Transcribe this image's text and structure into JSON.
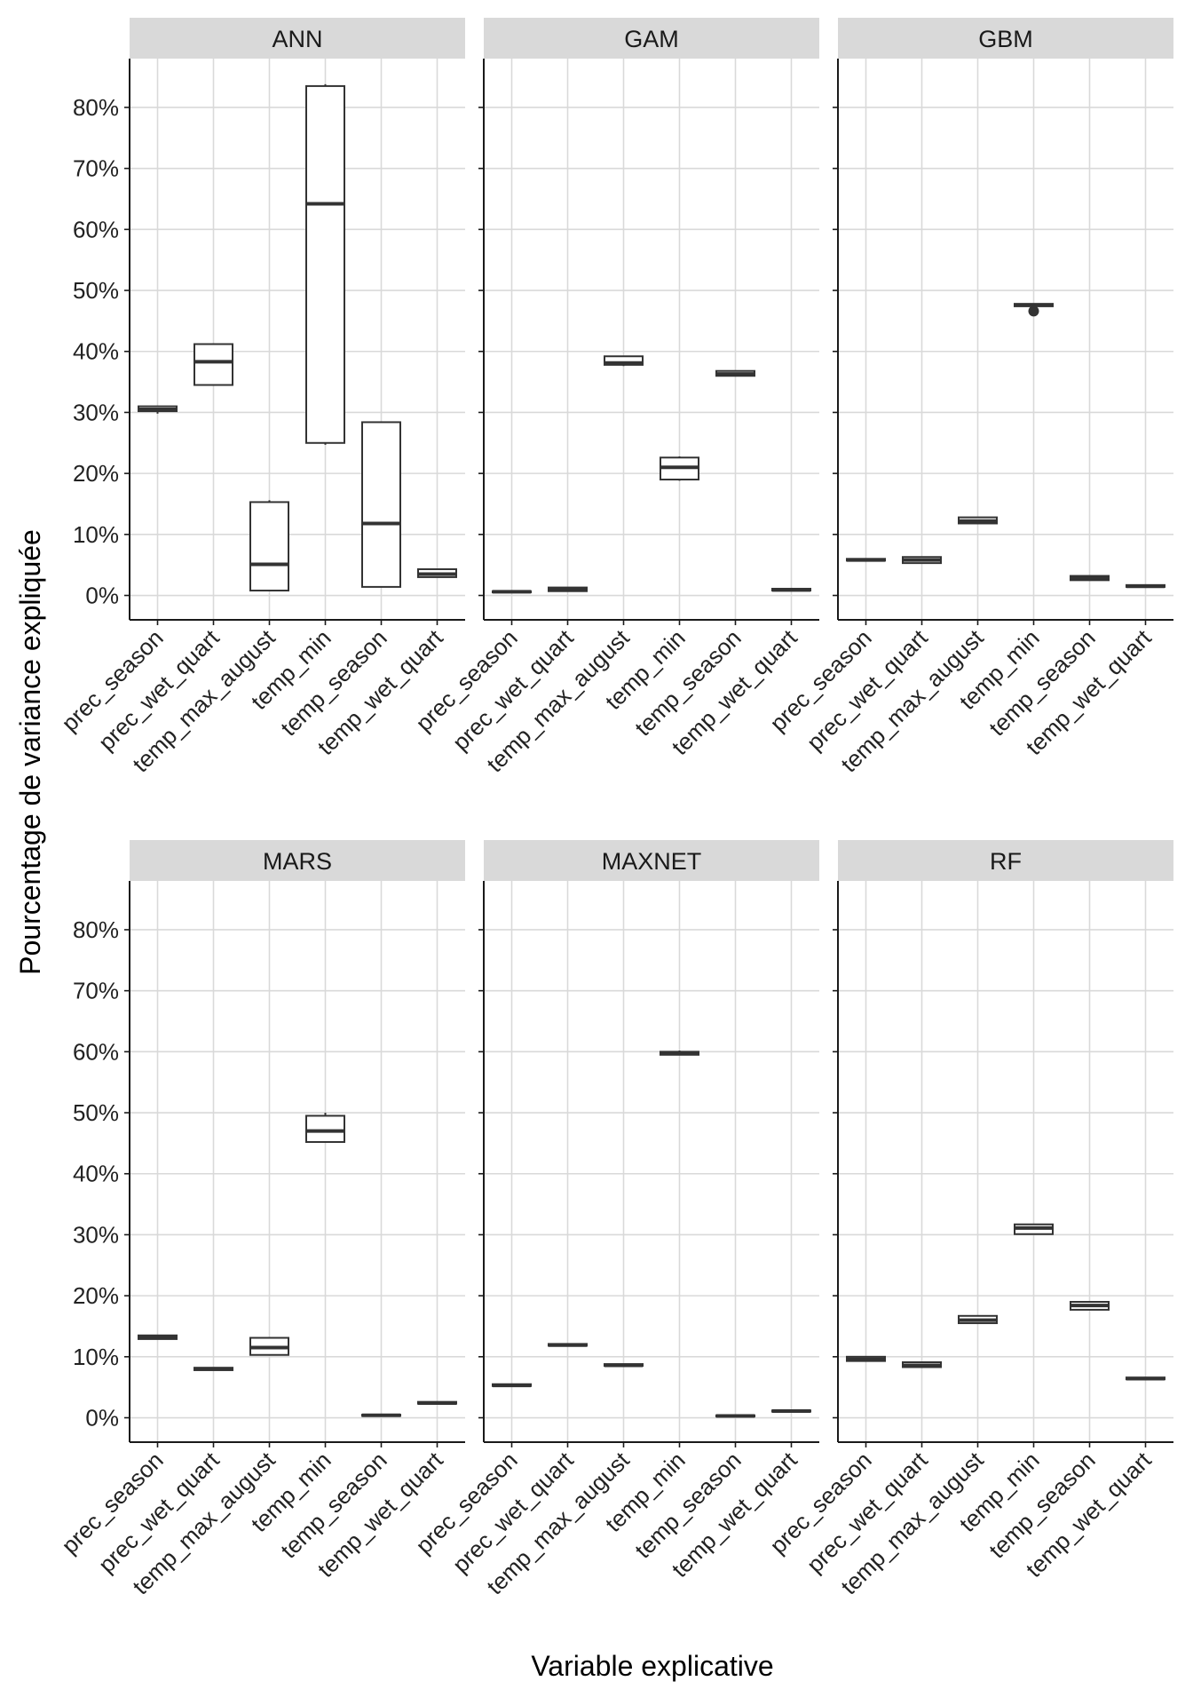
{
  "chart_data": {
    "type": "boxplot",
    "layout": "facet-grid 2x3",
    "xlabel": "Variable explicative",
    "ylabel": "Pourcentage de variance expliquée",
    "ylim": [
      -0.04,
      0.88
    ],
    "yticks": [
      0,
      0.1,
      0.2,
      0.3,
      0.4,
      0.5,
      0.6,
      0.7,
      0.8
    ],
    "ytick_labels": [
      "0%",
      "10%",
      "20%",
      "30%",
      "40%",
      "50%",
      "60%",
      "70%",
      "80%"
    ],
    "categories": [
      "prec_season",
      "prec_wet_quart",
      "temp_max_august",
      "temp_min",
      "temp_season",
      "temp_wet_quart"
    ],
    "grid": true,
    "facets": [
      {
        "name": "ANN",
        "boxes": [
          {
            "min": 0.298,
            "q1": 0.302,
            "median": 0.305,
            "q3": 0.31,
            "max": 0.311
          },
          {
            "min": 0.345,
            "q1": 0.345,
            "median": 0.383,
            "q3": 0.412,
            "max": 0.412
          },
          {
            "min": 0.008,
            "q1": 0.008,
            "median": 0.051,
            "q3": 0.153,
            "max": 0.156
          },
          {
            "min": 0.247,
            "q1": 0.25,
            "median": 0.642,
            "q3": 0.835,
            "max": 0.838
          },
          {
            "min": 0.014,
            "q1": 0.014,
            "median": 0.118,
            "q3": 0.284,
            "max": 0.284
          },
          {
            "min": 0.03,
            "q1": 0.03,
            "median": 0.035,
            "q3": 0.043,
            "max": 0.043
          }
        ]
      },
      {
        "name": "GAM",
        "boxes": [
          {
            "min": 0.005,
            "q1": 0.005,
            "median": 0.006,
            "q3": 0.007,
            "max": 0.007
          },
          {
            "min": 0.007,
            "q1": 0.007,
            "median": 0.01,
            "q3": 0.013,
            "max": 0.013
          },
          {
            "min": 0.376,
            "q1": 0.378,
            "median": 0.381,
            "q3": 0.392,
            "max": 0.392
          },
          {
            "min": 0.188,
            "q1": 0.19,
            "median": 0.21,
            "q3": 0.226,
            "max": 0.228
          },
          {
            "min": 0.36,
            "q1": 0.36,
            "median": 0.363,
            "q3": 0.368,
            "max": 0.368
          },
          {
            "min": 0.008,
            "q1": 0.008,
            "median": 0.009,
            "q3": 0.011,
            "max": 0.011
          }
        ]
      },
      {
        "name": "GBM",
        "boxes": [
          {
            "min": 0.057,
            "q1": 0.057,
            "median": 0.058,
            "q3": 0.06,
            "max": 0.06
          },
          {
            "min": 0.053,
            "q1": 0.053,
            "median": 0.058,
            "q3": 0.063,
            "max": 0.063
          },
          {
            "min": 0.118,
            "q1": 0.118,
            "median": 0.122,
            "q3": 0.128,
            "max": 0.128
          },
          {
            "min": 0.474,
            "q1": 0.474,
            "median": 0.476,
            "q3": 0.478,
            "max": 0.478,
            "outliers": [
              0.466
            ]
          },
          {
            "min": 0.025,
            "q1": 0.025,
            "median": 0.028,
            "q3": 0.032,
            "max": 0.032
          },
          {
            "min": 0.014,
            "q1": 0.014,
            "median": 0.015,
            "q3": 0.017,
            "max": 0.017
          }
        ]
      },
      {
        "name": "MARS",
        "boxes": [
          {
            "min": 0.129,
            "q1": 0.129,
            "median": 0.131,
            "q3": 0.135,
            "max": 0.135
          },
          {
            "min": 0.078,
            "q1": 0.078,
            "median": 0.08,
            "q3": 0.082,
            "max": 0.082
          },
          {
            "min": 0.103,
            "q1": 0.103,
            "median": 0.115,
            "q3": 0.131,
            "max": 0.131
          },
          {
            "min": 0.452,
            "q1": 0.452,
            "median": 0.47,
            "q3": 0.495,
            "max": 0.5
          },
          {
            "min": 0.003,
            "q1": 0.003,
            "median": 0.004,
            "q3": 0.005,
            "max": 0.005
          },
          {
            "min": 0.023,
            "q1": 0.023,
            "median": 0.024,
            "q3": 0.026,
            "max": 0.026
          }
        ]
      },
      {
        "name": "MAXNET",
        "boxes": [
          {
            "min": 0.052,
            "q1": 0.052,
            "median": 0.053,
            "q3": 0.055,
            "max": 0.055
          },
          {
            "min": 0.118,
            "q1": 0.118,
            "median": 0.119,
            "q3": 0.121,
            "max": 0.121
          },
          {
            "min": 0.085,
            "q1": 0.085,
            "median": 0.086,
            "q3": 0.088,
            "max": 0.088
          },
          {
            "min": 0.594,
            "q1": 0.595,
            "median": 0.597,
            "q3": 0.6,
            "max": 0.602
          },
          {
            "min": 0.002,
            "q1": 0.002,
            "median": 0.003,
            "q3": 0.004,
            "max": 0.004
          },
          {
            "min": 0.01,
            "q1": 0.01,
            "median": 0.011,
            "q3": 0.012,
            "max": 0.012
          }
        ]
      },
      {
        "name": "RF",
        "boxes": [
          {
            "min": 0.093,
            "q1": 0.093,
            "median": 0.096,
            "q3": 0.1,
            "max": 0.1
          },
          {
            "min": 0.083,
            "q1": 0.083,
            "median": 0.086,
            "q3": 0.091,
            "max": 0.091
          },
          {
            "min": 0.155,
            "q1": 0.155,
            "median": 0.16,
            "q3": 0.167,
            "max": 0.167
          },
          {
            "min": 0.301,
            "q1": 0.301,
            "median": 0.311,
            "q3": 0.317,
            "max": 0.317
          },
          {
            "min": 0.177,
            "q1": 0.177,
            "median": 0.184,
            "q3": 0.19,
            "max": 0.19
          },
          {
            "min": 0.063,
            "q1": 0.063,
            "median": 0.064,
            "q3": 0.066,
            "max": 0.066
          }
        ]
      }
    ]
  }
}
